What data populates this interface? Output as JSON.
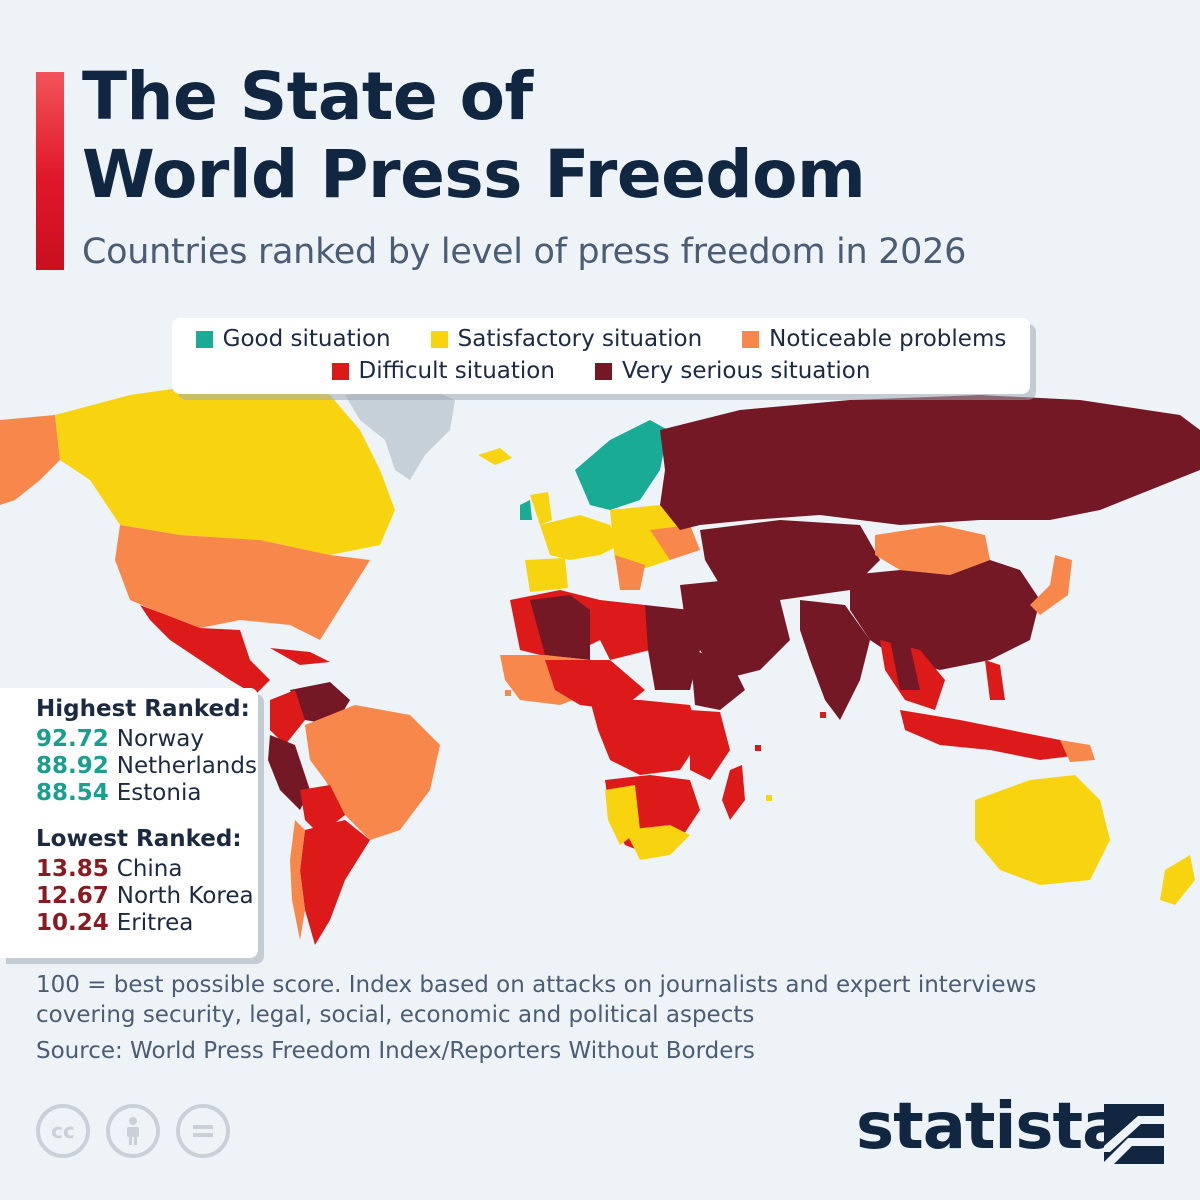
{
  "header": {
    "title_line1": "The State of",
    "title_line2": "World Press Freedom",
    "subtitle": "Countries ranked by level of press freedom in 2026"
  },
  "legend": [
    {
      "label": "Good situation",
      "color": "#1aab96"
    },
    {
      "label": "Satisfactory situation",
      "color": "#f8d410"
    },
    {
      "label": "Noticeable problems",
      "color": "#f7874b"
    },
    {
      "label": "Difficult situation",
      "color": "#dc1a1a"
    },
    {
      "label": "Very serious situation",
      "color": "#731824"
    }
  ],
  "highest_ranked": {
    "heading": "Highest Ranked:",
    "items": [
      {
        "score": "92.72",
        "country": "Norway"
      },
      {
        "score": "88.92",
        "country": "Netherlands"
      },
      {
        "score": "88.54",
        "country": "Estonia"
      }
    ]
  },
  "lowest_ranked": {
    "heading": "Lowest Ranked:",
    "items": [
      {
        "score": "13.85",
        "country": "China"
      },
      {
        "score": "12.67",
        "country": "North Korea"
      },
      {
        "score": "10.24",
        "country": "Eritrea"
      }
    ]
  },
  "footer": {
    "note": "100 = best possible score. Index based on attacks on journalists and expert interviews covering security, legal, social, economic and political aspects",
    "source": "Source: World Press Freedom Index/Reporters Without Borders",
    "brand": "statista"
  },
  "map_colors": {
    "good": "#1aab96",
    "satisfactory": "#f8d410",
    "noticeable": "#f7874b",
    "difficult": "#dc1a1a",
    "very_serious": "#731824",
    "no_data": "#c6d0d8"
  },
  "icons": [
    "cc-icon",
    "attribution-icon",
    "no-derivatives-icon",
    "statista-logo-icon"
  ]
}
